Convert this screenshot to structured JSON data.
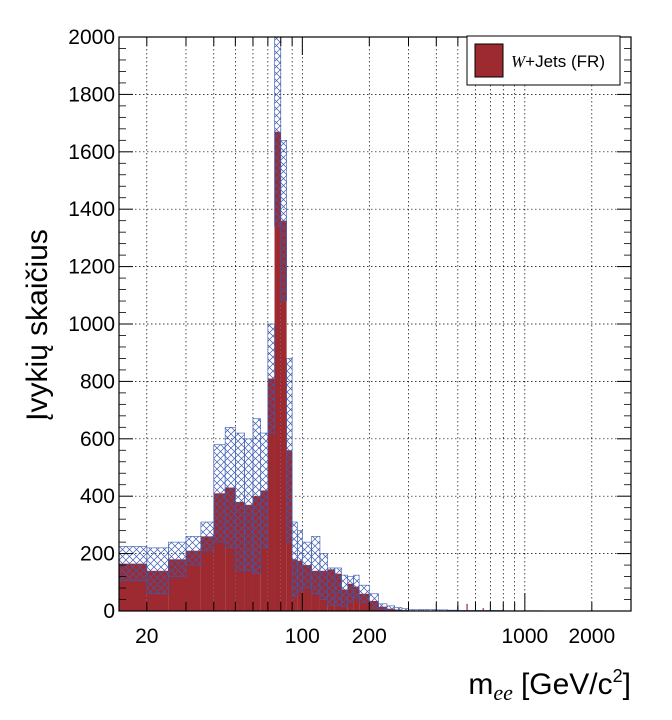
{
  "chart_data": {
    "type": "bar",
    "title": "",
    "xlabel_main": "m",
    "xlabel_sub": "ee",
    "xlabel_unit": "[GeV/c",
    "xlabel_sup": "2",
    "xlabel_close": "]",
    "ylabel": "Įvykių skaičius",
    "x_scale": "log",
    "xlim": [
      15,
      3000
    ],
    "ylim": [
      0,
      2000
    ],
    "grid": true,
    "legend_position": "top-right",
    "y_ticks": [
      0,
      200,
      400,
      600,
      800,
      1000,
      1200,
      1400,
      1600,
      1800,
      2000
    ],
    "x_tick_labels": [
      {
        "value": 20,
        "label": "20"
      },
      {
        "value": 100,
        "label": "100"
      },
      {
        "value": 200,
        "label": "200"
      },
      {
        "value": 1000,
        "label": "1000"
      },
      {
        "value": 2000,
        "label": "2000"
      }
    ],
    "x_grid_values": [
      20,
      30,
      40,
      50,
      60,
      70,
      80,
      90,
      100,
      200,
      300,
      400,
      500,
      600,
      700,
      800,
      900,
      1000,
      2000
    ],
    "bin_edges": [
      15,
      20,
      25,
      30,
      35,
      40,
      45,
      50,
      55,
      60,
      65,
      70,
      75,
      80,
      85,
      90,
      95,
      100,
      110,
      120,
      130,
      140,
      150,
      160,
      170,
      180,
      200,
      220,
      240,
      260,
      280,
      300,
      350,
      400,
      450,
      500,
      600,
      700,
      800,
      1000,
      1200,
      1500,
      2000,
      3000
    ],
    "series": [
      {
        "name": "W+Jets (FR)",
        "color": "#9c2a30",
        "values": [
          165,
          140,
          180,
          210,
          260,
          410,
          430,
          380,
          370,
          400,
          420,
          810,
          1670,
          1360,
          560,
          180,
          175,
          160,
          140,
          140,
          145,
          130,
          75,
          95,
          85,
          60,
          35,
          15,
          8,
          5,
          3,
          2,
          1,
          0,
          0,
          0,
          0,
          0,
          0,
          0,
          0,
          0,
          0
        ]
      }
    ],
    "uncertainty": {
      "pattern": "hatched",
      "color": "#3a5bb0",
      "upper": [
        225,
        220,
        240,
        260,
        310,
        580,
        640,
        620,
        600,
        670,
        620,
        1000,
        2000,
        1640,
        880,
        310,
        280,
        240,
        260,
        200,
        150,
        150,
        125,
        120,
        125,
        90,
        60,
        25,
        18,
        12,
        8,
        5,
        5,
        4,
        3,
        2,
        2,
        2,
        1,
        1,
        0,
        0,
        0
      ],
      "lower": [
        105,
        60,
        120,
        160,
        210,
        240,
        220,
        140,
        140,
        130,
        220,
        620,
        1340,
        1080,
        240,
        50,
        70,
        80,
        60,
        40,
        20,
        20,
        15,
        30,
        45,
        30,
        10,
        5,
        0,
        0,
        0,
        0,
        0,
        0,
        0,
        0,
        0,
        0,
        0,
        0,
        0,
        0,
        0
      ]
    },
    "spikes": [
      {
        "x": 500,
        "value": 18
      },
      {
        "x": 550,
        "value": 25
      },
      {
        "x": 650,
        "value": 10
      }
    ]
  }
}
